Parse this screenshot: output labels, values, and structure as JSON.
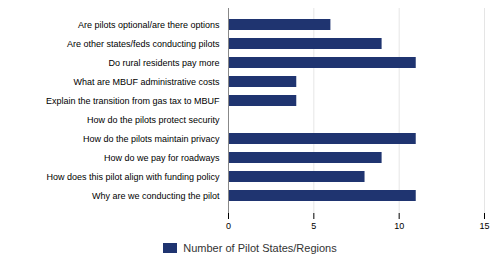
{
  "chart_data": {
    "type": "bar",
    "orientation": "horizontal",
    "categories": [
      "Are pilots optional/are there options",
      "Are other states/feds conducting pilots",
      "Do rural residents pay more",
      "What are MBUF administrative costs",
      "Explain the transition from gas tax to MBUF",
      "How do the pilots protect security",
      "How do the pilots maintain privacy",
      "How do we pay for roadways",
      "How does this pilot align with funding policy",
      "Why are we conducting the pilot"
    ],
    "series": [
      {
        "name": "Number of Pilot States/Regions",
        "color": "#1F3470",
        "values": [
          6,
          9,
          11,
          4,
          4,
          0,
          11,
          9,
          8,
          11
        ]
      }
    ],
    "xlim": [
      0,
      15
    ],
    "xticks": [
      0,
      5,
      10,
      15
    ],
    "grid": true,
    "legend": "bottom"
  }
}
